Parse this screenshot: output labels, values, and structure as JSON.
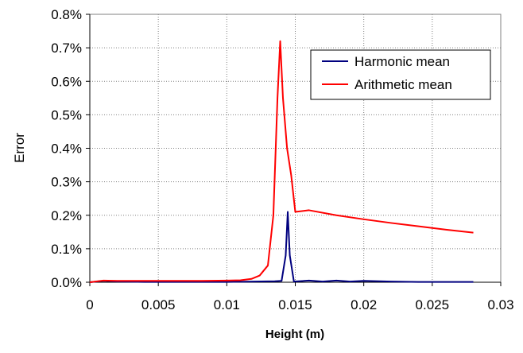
{
  "chart_data": {
    "type": "line",
    "title": "",
    "xlabel": "Height (m)",
    "ylabel": "Error",
    "xlim": [
      0,
      0.03
    ],
    "ylim": [
      0,
      0.008
    ],
    "x_ticks": [
      0,
      0.005,
      0.01,
      0.015,
      0.02,
      0.025,
      0.03
    ],
    "x_tick_labels": [
      "0",
      "0.005",
      "0.01",
      "0.015",
      "0.02",
      "0.025",
      "0.03"
    ],
    "y_ticks": [
      0,
      0.001,
      0.002,
      0.003,
      0.004,
      0.005,
      0.006,
      0.007,
      0.008
    ],
    "y_tick_labels": [
      "0.0%",
      "0.1%",
      "0.2%",
      "0.3%",
      "0.4%",
      "0.5%",
      "0.6%",
      "0.7%",
      "0.8%"
    ],
    "grid": true,
    "legend_position": "top-right",
    "series": [
      {
        "name": "Harmonic mean",
        "color": "#00007f",
        "points": [
          [
            0.0,
            0.0
          ],
          [
            0.001,
            4e-05
          ],
          [
            0.002,
            2e-05
          ],
          [
            0.004,
            1e-05
          ],
          [
            0.006,
            1e-05
          ],
          [
            0.008,
            1e-05
          ],
          [
            0.01,
            1e-05
          ],
          [
            0.012,
            2e-05
          ],
          [
            0.0135,
            3e-05
          ],
          [
            0.014,
            4e-05
          ],
          [
            0.0143,
            0.0008
          ],
          [
            0.01445,
            0.0021
          ],
          [
            0.0146,
            0.0008
          ],
          [
            0.0149,
            2e-05
          ],
          [
            0.016,
            5e-05
          ],
          [
            0.017,
            2e-05
          ],
          [
            0.018,
            5e-05
          ],
          [
            0.019,
            2e-05
          ],
          [
            0.02,
            4e-05
          ],
          [
            0.022,
            2e-05
          ],
          [
            0.024,
            1e-05
          ],
          [
            0.026,
            1e-05
          ],
          [
            0.028,
            1e-05
          ]
        ]
      },
      {
        "name": "Arithmetic mean",
        "color": "#ff0000",
        "points": [
          [
            0.0,
            0.0
          ],
          [
            0.001,
            5e-05
          ],
          [
            0.002,
            4e-05
          ],
          [
            0.004,
            4e-05
          ],
          [
            0.006,
            4e-05
          ],
          [
            0.008,
            4e-05
          ],
          [
            0.01,
            5e-05
          ],
          [
            0.011,
            6e-05
          ],
          [
            0.0118,
            0.0001
          ],
          [
            0.0124,
            0.0002
          ],
          [
            0.013,
            0.0005
          ],
          [
            0.0134,
            0.002
          ],
          [
            0.0137,
            0.0055
          ],
          [
            0.0139,
            0.0072
          ],
          [
            0.0141,
            0.0055
          ],
          [
            0.0144,
            0.004
          ],
          [
            0.0147,
            0.0032
          ],
          [
            0.015,
            0.0021
          ],
          [
            0.016,
            0.00215
          ],
          [
            0.018,
            0.002
          ],
          [
            0.02,
            0.00188
          ],
          [
            0.022,
            0.00177
          ],
          [
            0.024,
            0.00167
          ],
          [
            0.026,
            0.00157
          ],
          [
            0.028,
            0.00148
          ]
        ]
      }
    ]
  }
}
